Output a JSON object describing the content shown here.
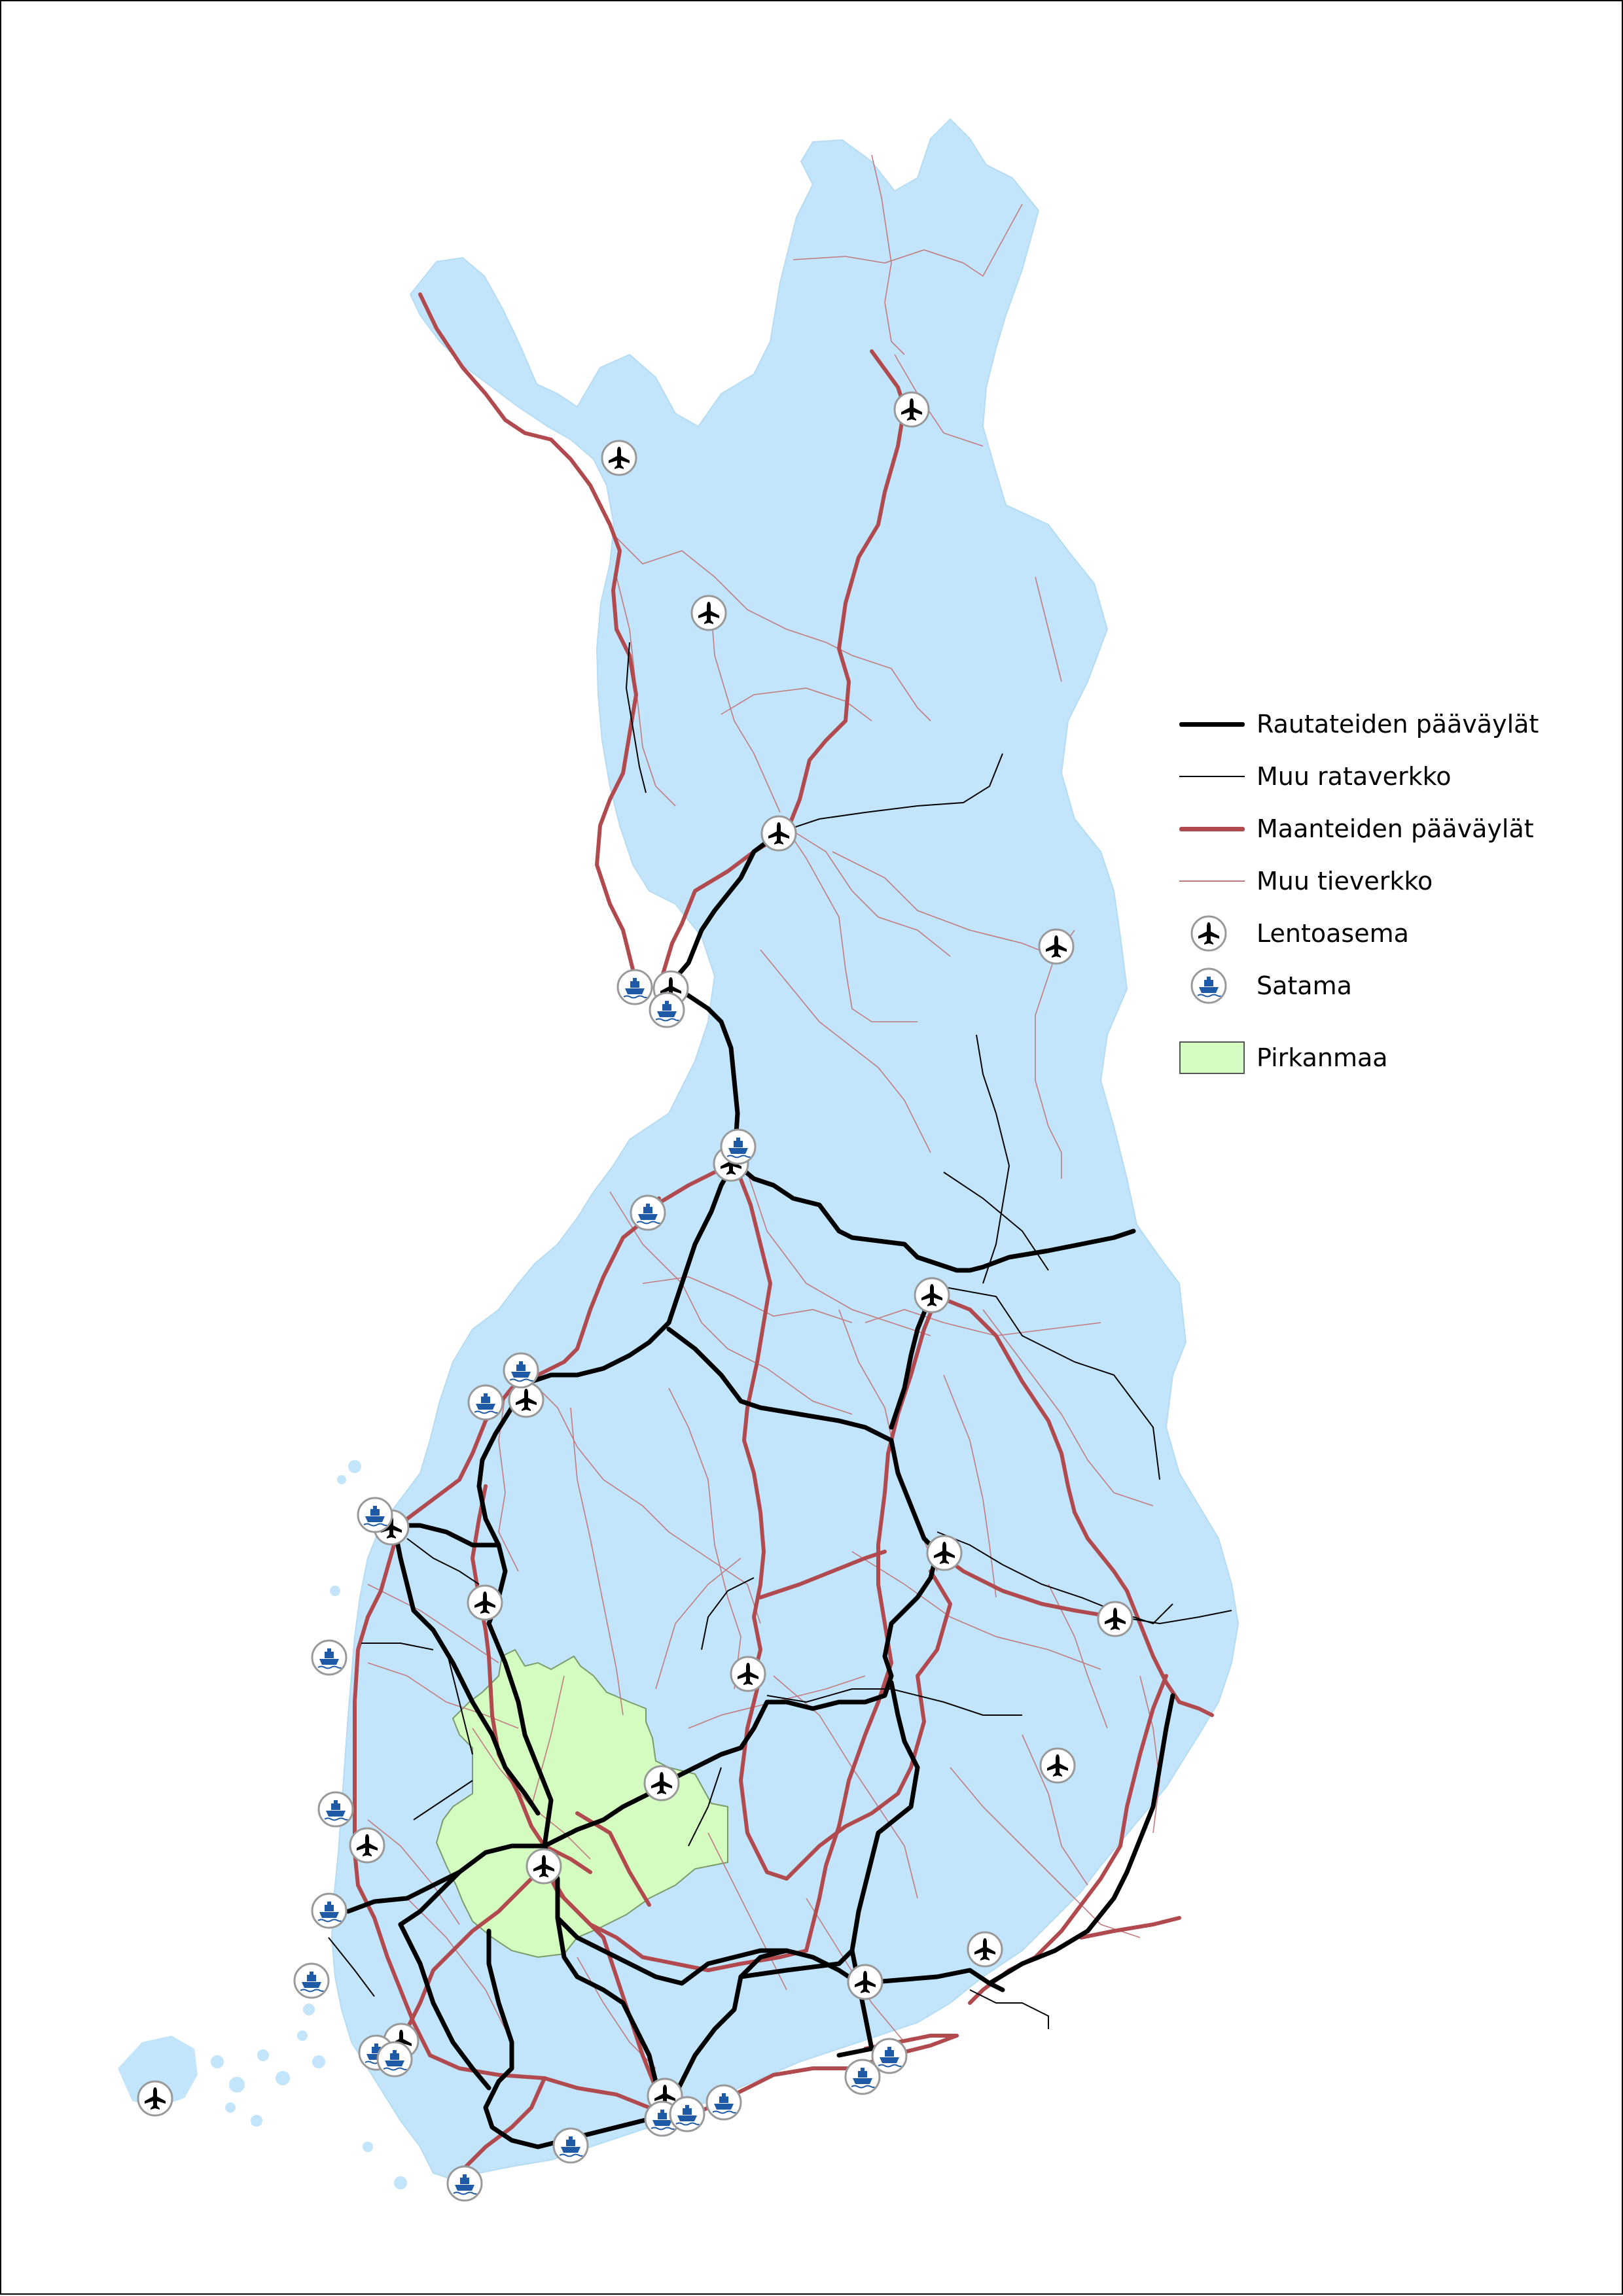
{
  "colors": {
    "land": "#c2e5fb",
    "land_border": "#b6dcf3",
    "pirkanmaa": "#d4fcc0",
    "pirkanmaa_border": "#7b9a6a",
    "rail": "#000000",
    "road_main": "#b04a4e",
    "road_other": "#c27a7f",
    "symbol_ring": "#999999",
    "port_blue": "#1f5aa6"
  },
  "legend": {
    "rail_main": "Rautateiden pääväylät",
    "rail_other": "Muu rataverkko",
    "road_main": "Maanteiden pääväylät",
    "road_other": "Muu tieverkko",
    "airport": "Lentoasema",
    "port": "Satama",
    "region": "Pirkanmaa"
  },
  "icons": {
    "airport": "airplane-icon",
    "port": "ship-icon"
  },
  "features": {
    "airports_count": 25,
    "ports_count": 21
  }
}
